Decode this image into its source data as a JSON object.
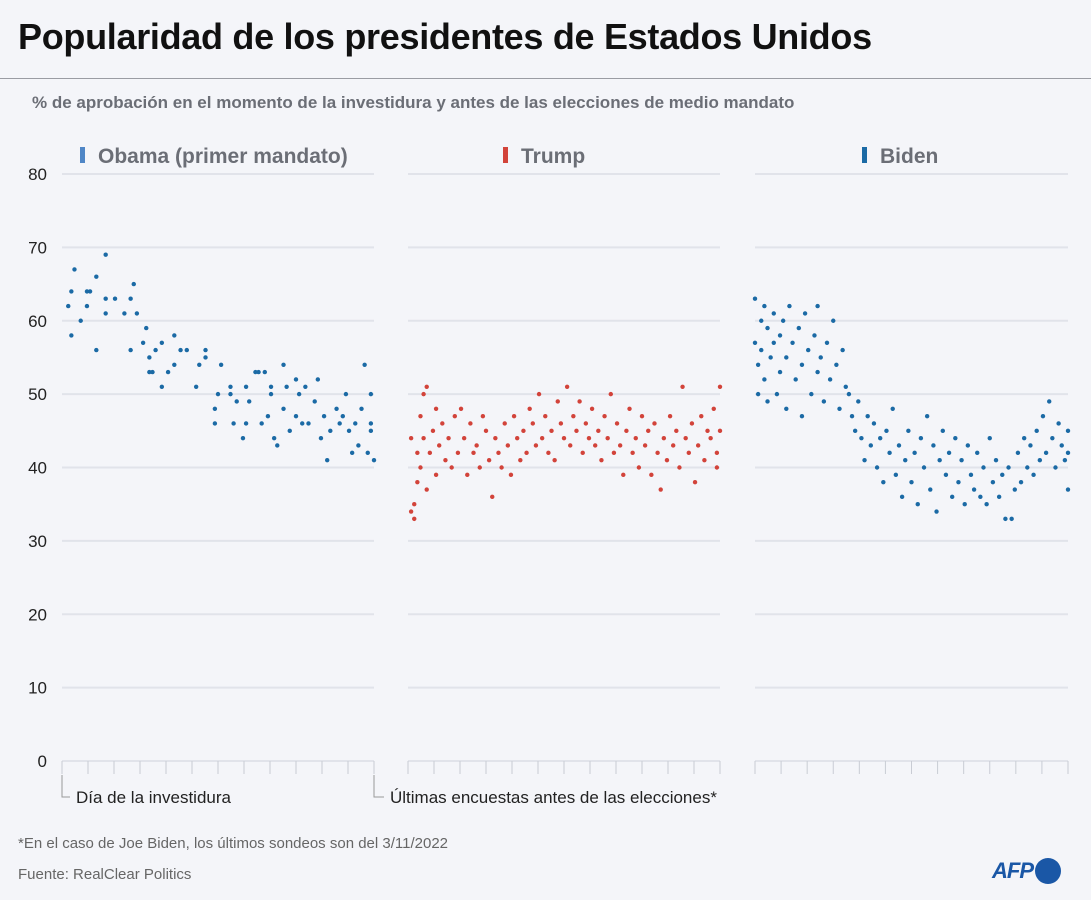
{
  "title": "Popularidad de los presidentes de Estados Unidos",
  "subtitle": "% de aprobación en el momento de la investidura y antes de las elecciones de medio mandato",
  "footnote": "*En el caso de Joe Biden, los últimos sondeos son del 3/11/2022",
  "source": "Fuente: RealClear Politics",
  "logo": "AFP",
  "chart_data": {
    "type": "scatter",
    "title": "Popularidad de los presidentes de Estados Unidos",
    "subtitle": "% de aprobación en el momento de la investidura y antes de las elecciones de medio mandato",
    "ylim": [
      0,
      80
    ],
    "yticks": [
      "0",
      "10",
      "20",
      "30",
      "40",
      "50",
      "60",
      "70",
      "80"
    ],
    "grid": true,
    "x_start_label": "Día de la investidura",
    "x_end_label": "Últimas encuestas antes de las elecciones*",
    "x_unit": "% of period from inauguration to last pre-midterm polls",
    "series": [
      {
        "name": "Obama (primer mandato)",
        "color": "#1b6aa5",
        "legend_color": "#4f86c6",
        "points": [
          [
            2,
            62
          ],
          [
            3,
            64
          ],
          [
            3,
            58
          ],
          [
            4,
            67
          ],
          [
            6,
            60
          ],
          [
            8,
            62
          ],
          [
            8,
            64
          ],
          [
            9,
            64
          ],
          [
            11,
            66
          ],
          [
            11,
            56
          ],
          [
            14,
            69
          ],
          [
            14,
            63
          ],
          [
            14,
            61
          ],
          [
            17,
            63
          ],
          [
            20,
            61
          ],
          [
            22,
            63
          ],
          [
            22,
            56
          ],
          [
            23,
            65
          ],
          [
            24,
            61
          ],
          [
            26,
            57
          ],
          [
            27,
            59
          ],
          [
            28,
            55
          ],
          [
            28,
            53
          ],
          [
            29,
            53
          ],
          [
            30,
            56
          ],
          [
            32,
            51
          ],
          [
            32,
            57
          ],
          [
            34,
            53
          ],
          [
            36,
            54
          ],
          [
            36,
            58
          ],
          [
            38,
            56
          ],
          [
            40,
            56
          ],
          [
            43,
            51
          ],
          [
            44,
            54
          ],
          [
            46,
            56
          ],
          [
            46,
            55
          ],
          [
            49,
            48
          ],
          [
            49,
            46
          ],
          [
            50,
            50
          ],
          [
            51,
            54
          ],
          [
            54,
            50
          ],
          [
            54,
            51
          ],
          [
            55,
            46
          ],
          [
            56,
            49
          ],
          [
            58,
            44
          ],
          [
            59,
            51
          ],
          [
            59,
            46
          ],
          [
            60,
            49
          ],
          [
            62,
            53
          ],
          [
            63,
            53
          ],
          [
            64,
            46
          ],
          [
            65,
            53
          ],
          [
            66,
            47
          ],
          [
            67,
            50
          ],
          [
            67,
            51
          ],
          [
            68,
            44
          ],
          [
            69,
            43
          ],
          [
            71,
            54
          ],
          [
            71,
            48
          ],
          [
            72,
            51
          ],
          [
            73,
            45
          ],
          [
            75,
            52
          ],
          [
            75,
            47
          ],
          [
            76,
            50
          ],
          [
            77,
            46
          ],
          [
            78,
            51
          ],
          [
            79,
            46
          ],
          [
            81,
            49
          ],
          [
            82,
            52
          ],
          [
            83,
            44
          ],
          [
            84,
            47
          ],
          [
            85,
            41
          ],
          [
            86,
            45
          ],
          [
            88,
            48
          ],
          [
            89,
            46
          ],
          [
            90,
            47
          ],
          [
            91,
            50
          ],
          [
            92,
            45
          ],
          [
            93,
            42
          ],
          [
            94,
            46
          ],
          [
            95,
            43
          ],
          [
            96,
            48
          ],
          [
            97,
            54
          ],
          [
            98,
            42
          ],
          [
            99,
            46
          ],
          [
            99,
            50
          ],
          [
            100,
            41
          ],
          [
            99,
            45
          ]
        ]
      },
      {
        "name": "Trump",
        "color": "#d2433a",
        "legend_color": "#d2433a",
        "points": [
          [
            1,
            34
          ],
          [
            1,
            44
          ],
          [
            2,
            35
          ],
          [
            2,
            33
          ],
          [
            3,
            38
          ],
          [
            3,
            42
          ],
          [
            4,
            47
          ],
          [
            4,
            40
          ],
          [
            5,
            50
          ],
          [
            5,
            44
          ],
          [
            6,
            37
          ],
          [
            6,
            51
          ],
          [
            7,
            42
          ],
          [
            8,
            45
          ],
          [
            9,
            39
          ],
          [
            9,
            48
          ],
          [
            10,
            43
          ],
          [
            11,
            46
          ],
          [
            12,
            41
          ],
          [
            13,
            44
          ],
          [
            14,
            40
          ],
          [
            15,
            47
          ],
          [
            16,
            42
          ],
          [
            17,
            48
          ],
          [
            18,
            44
          ],
          [
            19,
            39
          ],
          [
            20,
            46
          ],
          [
            21,
            42
          ],
          [
            22,
            43
          ],
          [
            23,
            40
          ],
          [
            24,
            47
          ],
          [
            25,
            45
          ],
          [
            26,
            41
          ],
          [
            27,
            36
          ],
          [
            28,
            44
          ],
          [
            29,
            42
          ],
          [
            30,
            40
          ],
          [
            31,
            46
          ],
          [
            32,
            43
          ],
          [
            33,
            39
          ],
          [
            34,
            47
          ],
          [
            35,
            44
          ],
          [
            36,
            41
          ],
          [
            37,
            45
          ],
          [
            38,
            42
          ],
          [
            39,
            48
          ],
          [
            40,
            46
          ],
          [
            41,
            43
          ],
          [
            42,
            50
          ],
          [
            43,
            44
          ],
          [
            44,
            47
          ],
          [
            45,
            42
          ],
          [
            46,
            45
          ],
          [
            47,
            41
          ],
          [
            48,
            49
          ],
          [
            49,
            46
          ],
          [
            50,
            44
          ],
          [
            51,
            51
          ],
          [
            52,
            43
          ],
          [
            53,
            47
          ],
          [
            54,
            45
          ],
          [
            55,
            49
          ],
          [
            56,
            42
          ],
          [
            57,
            46
          ],
          [
            58,
            44
          ],
          [
            59,
            48
          ],
          [
            60,
            43
          ],
          [
            61,
            45
          ],
          [
            62,
            41
          ],
          [
            63,
            47
          ],
          [
            64,
            44
          ],
          [
            65,
            50
          ],
          [
            66,
            42
          ],
          [
            67,
            46
          ],
          [
            68,
            43
          ],
          [
            69,
            39
          ],
          [
            70,
            45
          ],
          [
            71,
            48
          ],
          [
            72,
            42
          ],
          [
            73,
            44
          ],
          [
            74,
            40
          ],
          [
            75,
            47
          ],
          [
            76,
            43
          ],
          [
            77,
            45
          ],
          [
            78,
            39
          ],
          [
            79,
            46
          ],
          [
            80,
            42
          ],
          [
            81,
            37
          ],
          [
            82,
            44
          ],
          [
            83,
            41
          ],
          [
            84,
            47
          ],
          [
            85,
            43
          ],
          [
            86,
            45
          ],
          [
            87,
            40
          ],
          [
            88,
            51
          ],
          [
            89,
            44
          ],
          [
            90,
            42
          ],
          [
            91,
            46
          ],
          [
            92,
            38
          ],
          [
            93,
            43
          ],
          [
            94,
            47
          ],
          [
            95,
            41
          ],
          [
            96,
            45
          ],
          [
            97,
            44
          ],
          [
            98,
            48
          ],
          [
            99,
            42
          ],
          [
            100,
            45
          ],
          [
            100,
            51
          ],
          [
            99,
            40
          ]
        ]
      },
      {
        "name": "Biden",
        "color": "#1b6aa5",
        "legend_color": "#1b6aa5",
        "points": [
          [
            0,
            63
          ],
          [
            0,
            57
          ],
          [
            1,
            54
          ],
          [
            1,
            50
          ],
          [
            2,
            60
          ],
          [
            2,
            56
          ],
          [
            3,
            62
          ],
          [
            3,
            52
          ],
          [
            4,
            59
          ],
          [
            4,
            49
          ],
          [
            5,
            55
          ],
          [
            6,
            61
          ],
          [
            6,
            57
          ],
          [
            7,
            50
          ],
          [
            8,
            58
          ],
          [
            8,
            53
          ],
          [
            9,
            60
          ],
          [
            10,
            55
          ],
          [
            10,
            48
          ],
          [
            11,
            62
          ],
          [
            12,
            57
          ],
          [
            13,
            52
          ],
          [
            14,
            59
          ],
          [
            15,
            54
          ],
          [
            15,
            47
          ],
          [
            16,
            61
          ],
          [
            17,
            56
          ],
          [
            18,
            50
          ],
          [
            19,
            58
          ],
          [
            20,
            53
          ],
          [
            20,
            62
          ],
          [
            21,
            55
          ],
          [
            22,
            49
          ],
          [
            23,
            57
          ],
          [
            24,
            52
          ],
          [
            25,
            60
          ],
          [
            26,
            54
          ],
          [
            27,
            48
          ],
          [
            28,
            56
          ],
          [
            29,
            51
          ],
          [
            30,
            50
          ],
          [
            31,
            47
          ],
          [
            32,
            45
          ],
          [
            33,
            49
          ],
          [
            34,
            44
          ],
          [
            35,
            41
          ],
          [
            36,
            47
          ],
          [
            37,
            43
          ],
          [
            38,
            46
          ],
          [
            39,
            40
          ],
          [
            40,
            44
          ],
          [
            41,
            38
          ],
          [
            42,
            45
          ],
          [
            43,
            42
          ],
          [
            44,
            48
          ],
          [
            45,
            39
          ],
          [
            46,
            43
          ],
          [
            47,
            36
          ],
          [
            48,
            41
          ],
          [
            49,
            45
          ],
          [
            50,
            38
          ],
          [
            51,
            42
          ],
          [
            52,
            35
          ],
          [
            53,
            44
          ],
          [
            54,
            40
          ],
          [
            55,
            47
          ],
          [
            56,
            37
          ],
          [
            57,
            43
          ],
          [
            58,
            34
          ],
          [
            59,
            41
          ],
          [
            60,
            45
          ],
          [
            61,
            39
          ],
          [
            62,
            42
          ],
          [
            63,
            36
          ],
          [
            64,
            44
          ],
          [
            65,
            38
          ],
          [
            66,
            41
          ],
          [
            67,
            35
          ],
          [
            68,
            43
          ],
          [
            69,
            39
          ],
          [
            70,
            37
          ],
          [
            71,
            42
          ],
          [
            72,
            36
          ],
          [
            73,
            40
          ],
          [
            74,
            35
          ],
          [
            75,
            44
          ],
          [
            76,
            38
          ],
          [
            77,
            41
          ],
          [
            78,
            36
          ],
          [
            79,
            39
          ],
          [
            80,
            33
          ],
          [
            81,
            40
          ],
          [
            82,
            33
          ],
          [
            83,
            37
          ],
          [
            84,
            42
          ],
          [
            85,
            38
          ],
          [
            86,
            44
          ],
          [
            87,
            40
          ],
          [
            88,
            43
          ],
          [
            89,
            39
          ],
          [
            90,
            45
          ],
          [
            91,
            41
          ],
          [
            92,
            47
          ],
          [
            93,
            42
          ],
          [
            94,
            49
          ],
          [
            95,
            44
          ],
          [
            96,
            40
          ],
          [
            97,
            46
          ],
          [
            98,
            43
          ],
          [
            99,
            41
          ],
          [
            100,
            45
          ],
          [
            100,
            37
          ],
          [
            100,
            42
          ]
        ]
      }
    ]
  }
}
